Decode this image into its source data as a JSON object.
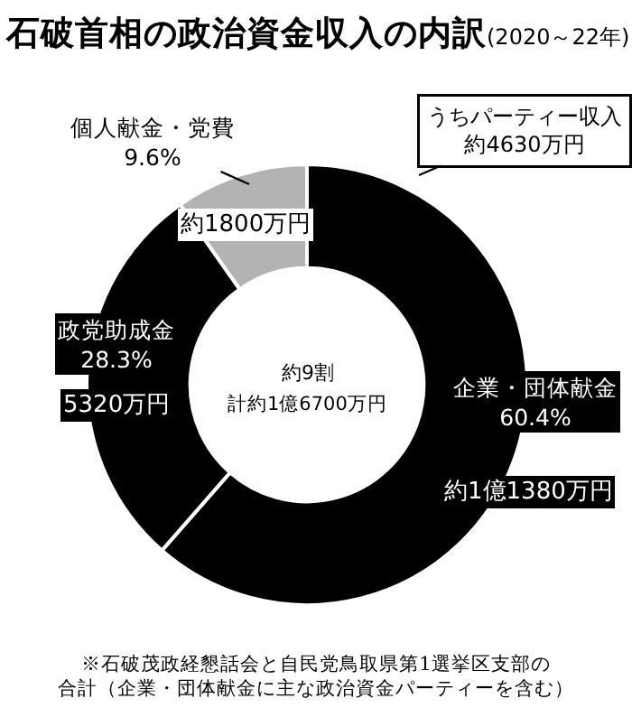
{
  "chart_data": {
    "type": "donut",
    "title": "石破首相の政治資金収入の内訳",
    "subtitle": "(2020～22年)",
    "categories": [
      "企業・団体献金",
      "政党助成金",
      "個人献金・党費"
    ],
    "values": [
      60.4,
      28.3,
      9.6
    ],
    "value_labels": [
      "60.4%",
      "28.3%",
      "9.6%"
    ],
    "colors": [
      "#000000",
      "#000000",
      "#b3b3b3"
    ],
    "legend": false,
    "annotations": [
      "約1億1380万円",
      "5320万円",
      "約1800万円",
      "約9割",
      "計約1億6700万円",
      "うちパーティー収入約4630万円",
      "※石破茂政経懇話会と自民党鳥取県第1選挙区支部の合計（企業・団体献金に主な政治資金パーティーを含む）"
    ]
  }
}
